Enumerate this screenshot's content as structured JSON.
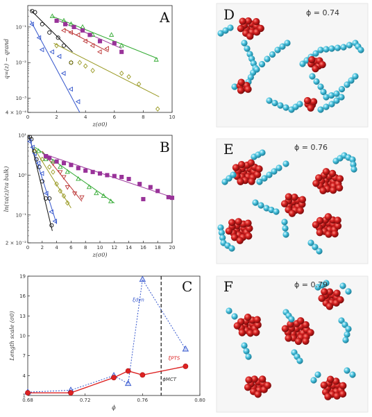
{
  "chart_data": [
    {
      "id": "A",
      "type": "scatter",
      "panel_label": "A",
      "xlabel": "z(σ0)",
      "ylabel": "q∞(z) − qrand",
      "ylog": true,
      "xlim": [
        0,
        10
      ],
      "ylim": [
        0.0004,
        0.4
      ],
      "xticks": [
        "0",
        "2",
        "4",
        "6",
        "8",
        "10"
      ],
      "yticks": [
        {
          "v": 0.1,
          "label": "10⁻¹"
        },
        {
          "v": 0.01,
          "label": "10⁻²"
        },
        {
          "v": 0.001,
          "label": "10⁻³"
        },
        {
          "v": 0.0004,
          "label": "4 × 10⁻⁴"
        }
      ],
      "series": [
        {
          "marker": "circle",
          "color": "#111111",
          "points": [
            [
              0.3,
              0.28
            ],
            [
              0.5,
              0.26
            ],
            [
              1.0,
              0.12
            ],
            [
              1.5,
              0.07
            ],
            [
              2.1,
              0.05
            ],
            [
              2.5,
              0.03
            ],
            [
              3.0,
              0.01
            ]
          ],
          "fit": [
            [
              0.2,
              0.3
            ],
            [
              3.1,
              0.02
            ]
          ]
        },
        {
          "marker": "tri-left",
          "color": "#3355cc",
          "points": [
            [
              0.3,
              0.12
            ],
            [
              0.8,
              0.05
            ],
            [
              1.0,
              0.023
            ],
            [
              1.7,
              0.02
            ],
            [
              2.2,
              0.015
            ],
            [
              2.5,
              0.005
            ],
            [
              3.0,
              0.0018
            ],
            [
              3.5,
              0.0008
            ]
          ],
          "fit": [
            [
              0.2,
              0.15
            ],
            [
              3.6,
              0.0004
            ]
          ]
        },
        {
          "marker": "tri-up",
          "color": "#33aa33",
          "points": [
            [
              1.7,
              0.2
            ],
            [
              2.5,
              0.15
            ],
            [
              3.0,
              0.12
            ],
            [
              3.8,
              0.1
            ],
            [
              4.5,
              0.06
            ],
            [
              5.8,
              0.06
            ],
            [
              6.5,
              0.03
            ],
            [
              8.9,
              0.012
            ]
          ],
          "fit": [
            [
              1.7,
              0.2
            ],
            [
              9.0,
              0.013
            ]
          ]
        },
        {
          "marker": "square",
          "color": "#993399",
          "points": [
            [
              2.0,
              0.15
            ],
            [
              2.6,
              0.12
            ],
            [
              3.2,
              0.1
            ],
            [
              3.8,
              0.08
            ],
            [
              4.3,
              0.06
            ],
            [
              5.0,
              0.04
            ],
            [
              6.0,
              0.035
            ],
            [
              6.5,
              0.02
            ]
          ],
          "fit": [
            [
              2.0,
              0.16
            ],
            [
              6.5,
              0.025
            ]
          ]
        },
        {
          "marker": "tri-left",
          "color": "#bb3333",
          "points": [
            [
              2.5,
              0.08
            ],
            [
              3.0,
              0.07
            ],
            [
              3.5,
              0.06
            ],
            [
              4.0,
              0.04
            ],
            [
              4.5,
              0.03
            ],
            [
              5.0,
              0.02
            ],
            [
              5.5,
              0.025
            ]
          ],
          "fit": [
            [
              2.5,
              0.09
            ],
            [
              5.6,
              0.02
            ]
          ]
        },
        {
          "marker": "diamond",
          "color": "#999922",
          "points": [
            [
              2.0,
              0.03
            ],
            [
              3.0,
              0.01
            ],
            [
              3.6,
              0.01
            ],
            [
              4.0,
              0.008
            ],
            [
              4.5,
              0.006
            ],
            [
              6.5,
              0.005
            ],
            [
              7.0,
              0.004
            ],
            [
              7.7,
              0.0025
            ],
            [
              9.0,
              0.0005
            ]
          ],
          "fit": [
            [
              1.8,
              0.035
            ],
            [
              9.1,
              0.0011
            ]
          ]
        }
      ]
    },
    {
      "id": "B",
      "type": "scatter",
      "panel_label": "B",
      "xlabel": "z(σ0)",
      "ylabel": "ln(τa(z)/τa bulk)",
      "ylog": true,
      "xlim": [
        0,
        20
      ],
      "ylim": [
        0.02,
        10
      ],
      "xticks": [
        "0",
        "2",
        "4",
        "6",
        "8",
        "10",
        "12",
        "14",
        "16",
        "18",
        "20"
      ],
      "yticks": [
        {
          "v": 10,
          "label": "10¹"
        },
        {
          "v": 1,
          "label": "10⁰"
        },
        {
          "v": 0.1,
          "label": "10⁻¹"
        },
        {
          "v": 0.02,
          "label": "2 × 10⁻²"
        }
      ],
      "series": [
        {
          "marker": "circle",
          "color": "#111111",
          "points": [
            [
              0.3,
              9
            ],
            [
              0.5,
              8
            ],
            [
              0.9,
              4
            ],
            [
              1.2,
              2.5
            ],
            [
              1.6,
              1.6
            ],
            [
              2.0,
              0.7
            ],
            [
              2.5,
              0.26
            ],
            [
              3.0,
              0.26
            ],
            [
              3.3,
              0.055
            ]
          ],
          "fit": [
            [
              0.2,
              10
            ],
            [
              3.4,
              0.04
            ]
          ]
        },
        {
          "marker": "tri-left",
          "color": "#3355cc",
          "points": [
            [
              0.3,
              7
            ],
            [
              0.7,
              5
            ],
            [
              1.0,
              3.5
            ],
            [
              1.5,
              2.0
            ],
            [
              2.0,
              1.1
            ],
            [
              2.6,
              0.35
            ],
            [
              3.3,
              0.12
            ],
            [
              3.8,
              0.07
            ]
          ],
          "fit": [
            [
              0.2,
              9
            ],
            [
              4.0,
              0.06
            ]
          ]
        },
        {
          "marker": "diamond",
          "color": "#999922",
          "points": [
            [
              1.0,
              4
            ],
            [
              2.0,
              2.5
            ],
            [
              3.0,
              1.6
            ],
            [
              3.5,
              1.2
            ],
            [
              4.0,
              0.6
            ],
            [
              4.5,
              0.4
            ],
            [
              5.0,
              0.3
            ],
            [
              5.5,
              0.2
            ]
          ],
          "fit": [
            [
              0.8,
              5
            ],
            [
              6.0,
              0.15
            ]
          ]
        },
        {
          "marker": "tri-down",
          "color": "#bb3333",
          "points": [
            [
              2.5,
              3
            ],
            [
              3.5,
              2
            ],
            [
              4.5,
              1.2
            ],
            [
              5.0,
              0.9
            ],
            [
              5.5,
              0.5
            ],
            [
              6.5,
              0.35
            ],
            [
              7.5,
              0.28
            ]
          ],
          "fit": [
            [
              2.0,
              4
            ],
            [
              7.5,
              0.22
            ]
          ]
        },
        {
          "marker": "tri-up",
          "color": "#33aa33",
          "points": [
            [
              1.5,
              4
            ],
            [
              2.5,
              2.5
            ],
            [
              3.5,
              2.2
            ],
            [
              4.5,
              1.6
            ],
            [
              5.5,
              1.2
            ],
            [
              7.0,
              0.8
            ],
            [
              8.5,
              0.5
            ],
            [
              9.5,
              0.35
            ],
            [
              10.5,
              0.3
            ],
            [
              11.5,
              0.22
            ]
          ],
          "fit": [
            [
              1.0,
              5
            ],
            [
              12.0,
              0.2
            ]
          ]
        },
        {
          "marker": "square",
          "color": "#993399",
          "points": [
            [
              2.5,
              3
            ],
            [
              3.0,
              2.7
            ],
            [
              4.0,
              2.2
            ],
            [
              5.0,
              2.0
            ],
            [
              6.0,
              1.8
            ],
            [
              7.0,
              1.5
            ],
            [
              8.0,
              1.3
            ],
            [
              9.0,
              1.2
            ],
            [
              10.0,
              1.1
            ],
            [
              11.0,
              1.0
            ],
            [
              12.0,
              0.95
            ],
            [
              13.0,
              0.9
            ],
            [
              14.0,
              0.8
            ],
            [
              15.5,
              0.6
            ],
            [
              16.0,
              0.25
            ],
            [
              17.0,
              0.5
            ],
            [
              18.0,
              0.4
            ],
            [
              19.5,
              0.28
            ],
            [
              20.0,
              0.27
            ]
          ],
          "fit": [
            [
              2.0,
              3.5
            ],
            [
              20.0,
              0.28
            ]
          ]
        }
      ]
    },
    {
      "id": "C",
      "type": "line",
      "panel_label": "C",
      "xlabel": "ϕ",
      "ylabel": "Length scale (σ0)",
      "xlim": [
        0.68,
        0.8
      ],
      "ylim": [
        1,
        19
      ],
      "xticks": [
        "0.68",
        "0.72",
        "0.76",
        "0.80"
      ],
      "yticks": [
        "1",
        "4",
        "7",
        "10",
        "13",
        "16",
        "19"
      ],
      "series": [
        {
          "name_label": "ξdyn",
          "color": "#3355cc",
          "marker": "tri-up",
          "style": "dotted",
          "x": [
            0.68,
            0.71,
            0.74,
            0.75,
            0.76,
            0.79
          ],
          "y": [
            1.5,
            1.8,
            4.0,
            2.8,
            18.5,
            8.0
          ]
        },
        {
          "name_label": "ξPTS",
          "color": "#dd2222",
          "marker": "circle",
          "style": "solid",
          "x": [
            0.68,
            0.71,
            0.74,
            0.75,
            0.76,
            0.79
          ],
          "y": [
            1.4,
            1.4,
            3.7,
            4.7,
            4.1,
            5.4
          ]
        }
      ],
      "vline": {
        "x": 0.773,
        "label": "ϕMCT"
      }
    }
  ],
  "snapshots": [
    {
      "letter": "D",
      "phi_text": "ϕ = 0.74"
    },
    {
      "letter": "E",
      "phi_text": "ϕ = 0.76"
    },
    {
      "letter": "F",
      "phi_text": "ϕ = 0.79"
    }
  ]
}
